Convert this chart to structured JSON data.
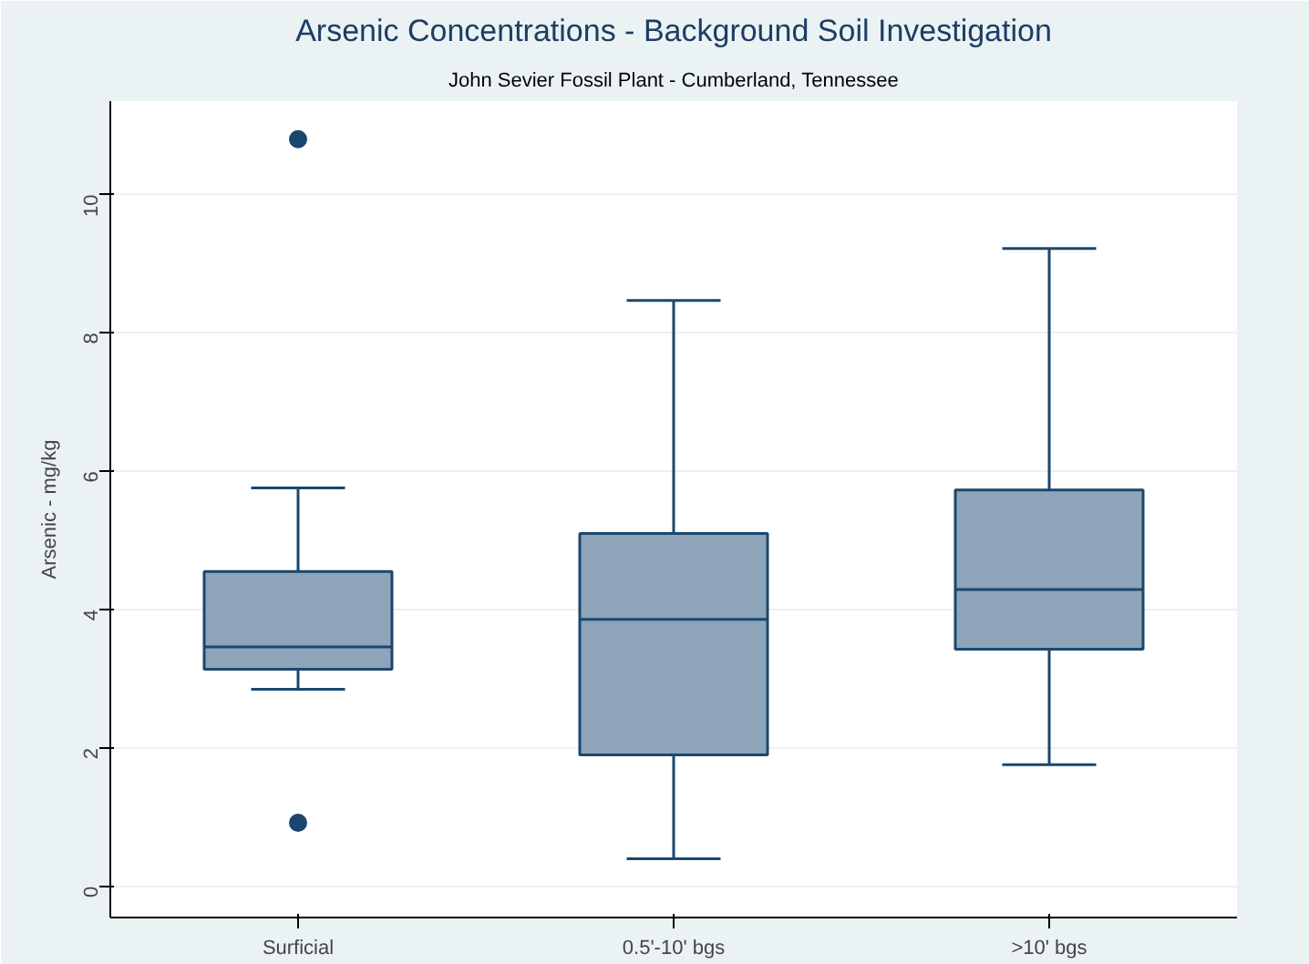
{
  "chart_data": {
    "type": "box",
    "title": "Arsenic Concentrations - Background Soil Investigation",
    "subtitle": "John Sevier Fossil Plant - Cumberland, Tennessee",
    "ylabel": "Arsenic - mg/kg",
    "categories": [
      "Surficial",
      "0.5'-10' bgs",
      ">10' bgs"
    ],
    "series": [
      {
        "color": "#8ea4b8",
        "boxes": [
          {
            "low": 2.85,
            "q1": 3.14,
            "median": 3.46,
            "q3": 4.55,
            "high": 5.76,
            "outliers": [
              10.8,
              0.92
            ]
          },
          {
            "low": 0.4,
            "q1": 1.9,
            "median": 3.86,
            "q3": 5.1,
            "high": 8.47
          },
          {
            "low": 1.76,
            "q1": 3.43,
            "median": 4.29,
            "q3": 5.73,
            "high": 9.22
          }
        ]
      }
    ],
    "ylim": [
      -0.45,
      11.35
    ],
    "yticks": [
      0,
      2,
      4,
      6,
      8,
      10
    ],
    "grid": "y"
  }
}
